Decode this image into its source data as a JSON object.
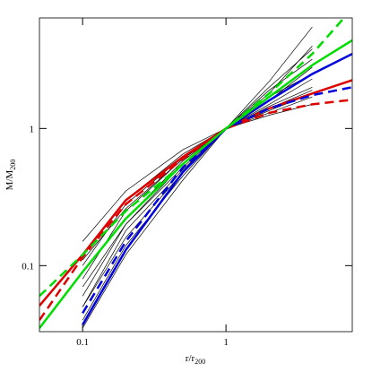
{
  "chart_data": {
    "type": "line",
    "log_x": true,
    "log_y": true,
    "xlabel": {
      "text": "r/r",
      "subscript": "200"
    },
    "ylabel": {
      "text": "M/M",
      "subscript": "200"
    },
    "xlim": [
      0.05,
      7.6
    ],
    "ylim": [
      0.033,
      6.4
    ],
    "xticks": [
      0.1,
      1
    ],
    "yticks": [
      0.1,
      1
    ],
    "x": [
      0.05,
      0.1,
      0.2,
      0.5,
      1,
      2,
      4,
      7.6
    ],
    "series": [
      {
        "color": "#000000",
        "width": 0.7,
        "values": [
          null,
          0.08,
          0.25,
          0.6,
          1,
          1.5,
          2.3,
          null
        ]
      },
      {
        "color": "#000000",
        "width": 0.7,
        "values": [
          null,
          0.05,
          0.18,
          0.5,
          1,
          1.8,
          4,
          null
        ]
      },
      {
        "color": "#000000",
        "width": 0.7,
        "values": [
          null,
          0.12,
          0.3,
          0.65,
          1,
          1.3,
          1.7,
          null
        ]
      },
      {
        "color": "#000000",
        "width": 0.7,
        "values": [
          null,
          0.06,
          0.2,
          0.55,
          1,
          1.6,
          2.8,
          null
        ]
      },
      {
        "color": "#000000",
        "width": 0.7,
        "values": [
          null,
          0.1,
          0.28,
          0.62,
          1,
          1.4,
          1.9,
          null
        ]
      },
      {
        "color": "#000000",
        "width": 0.7,
        "values": [
          null,
          0.04,
          0.14,
          0.45,
          1,
          2.2,
          5.5,
          null
        ]
      },
      {
        "color": "#000000",
        "width": 0.7,
        "values": [
          null,
          0.09,
          0.22,
          0.58,
          1,
          1.45,
          2.0,
          null
        ]
      },
      {
        "color": "#000000",
        "width": 0.7,
        "values": [
          null,
          0.07,
          0.2,
          0.52,
          1,
          1.7,
          2.5,
          null
        ]
      },
      {
        "color": "#000000",
        "width": 0.7,
        "values": [
          null,
          0.15,
          0.35,
          0.7,
          1,
          1.25,
          1.5,
          null
        ]
      },
      {
        "color": "#000000",
        "width": 0.7,
        "values": [
          null,
          0.05,
          0.16,
          0.48,
          1,
          1.9,
          3.2,
          null
        ]
      },
      {
        "color": "#000000",
        "width": 0.7,
        "values": [
          null,
          0.11,
          0.26,
          0.6,
          1,
          1.35,
          1.8,
          null
        ]
      },
      {
        "color": "#000000",
        "width": 0.7,
        "values": [
          null,
          0.035,
          0.12,
          0.42,
          1,
          2.0,
          3.8,
          null
        ]
      },
      {
        "color": "#dd0000",
        "width": 2.5,
        "values": [
          0.051,
          0.12,
          0.3,
          0.62,
          1,
          1.4,
          1.8,
          2.25
        ]
      },
      {
        "color": "#dd0000",
        "width": 2.5,
        "dashed": true,
        "values": [
          0.04,
          0.115,
          0.28,
          0.6,
          1,
          1.3,
          1.5,
          1.62
        ]
      },
      {
        "color": "#0000dd",
        "width": 2.5,
        "values": [
          null,
          0.037,
          0.13,
          0.48,
          1,
          1.6,
          2.5,
          3.5
        ]
      },
      {
        "color": "#0000dd",
        "width": 2.5,
        "dashed": true,
        "values": [
          null,
          0.045,
          0.15,
          0.52,
          1,
          1.4,
          1.75,
          2.0
        ]
      },
      {
        "color": "#00dd00",
        "width": 2.5,
        "values": [
          0.035,
          0.09,
          0.22,
          0.55,
          1,
          1.7,
          2.9,
          4.4
        ]
      },
      {
        "color": "#00dd00",
        "width": 2.5,
        "dashed": true,
        "values": [
          0.06,
          0.12,
          0.25,
          0.55,
          1,
          1.8,
          3.5,
          7.5
        ]
      }
    ]
  }
}
